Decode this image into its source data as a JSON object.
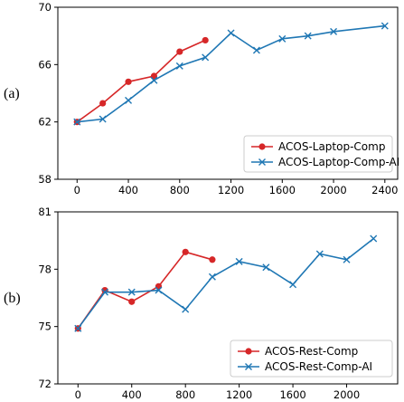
{
  "chart_data": [
    {
      "type": "line",
      "panel_label": "(a)",
      "x_ticks": [
        0,
        400,
        800,
        1200,
        1600,
        2000,
        2400
      ],
      "y_ticks": [
        58,
        62,
        66,
        70
      ],
      "xlim": [
        -150,
        2500
      ],
      "ylim": [
        58,
        70
      ],
      "grid": false,
      "legend_position": "lower-right",
      "series": [
        {
          "name": "ACOS-Laptop-Comp",
          "color": "#d62728",
          "marker": "circle",
          "x": [
            0,
            200,
            400,
            600,
            800,
            1000
          ],
          "y": [
            62.0,
            63.3,
            64.8,
            65.2,
            66.9,
            67.7
          ]
        },
        {
          "name": "ACOS-Laptop-Comp-AI",
          "color": "#1f77b4",
          "marker": "x",
          "x": [
            0,
            200,
            400,
            600,
            800,
            1000,
            1200,
            1400,
            1600,
            1800,
            2000,
            2400
          ],
          "y": [
            62.0,
            62.2,
            63.5,
            64.9,
            65.9,
            66.5,
            68.2,
            67.0,
            67.8,
            68.0,
            68.3,
            68.7
          ]
        }
      ]
    },
    {
      "type": "line",
      "panel_label": "(b)",
      "x_ticks": [
        0,
        400,
        800,
        1200,
        1600,
        2000
      ],
      "y_ticks": [
        72,
        75,
        78,
        81
      ],
      "xlim": [
        -150,
        2380
      ],
      "ylim": [
        72,
        81
      ],
      "grid": false,
      "legend_position": "lower-right",
      "series": [
        {
          "name": "ACOS-Rest-Comp",
          "color": "#d62728",
          "marker": "circle",
          "x": [
            0,
            200,
            400,
            600,
            800,
            1000
          ],
          "y": [
            74.9,
            76.9,
            76.3,
            77.1,
            78.9,
            78.5
          ]
        },
        {
          "name": "ACOS-Rest-Comp-AI",
          "color": "#1f77b4",
          "marker": "x",
          "x": [
            0,
            200,
            400,
            600,
            800,
            1000,
            1200,
            1400,
            1600,
            1800,
            2000,
            2200
          ],
          "y": [
            74.9,
            76.8,
            76.8,
            76.9,
            75.9,
            77.6,
            78.4,
            78.1,
            77.2,
            78.8,
            78.5,
            79.6
          ]
        }
      ]
    }
  ]
}
